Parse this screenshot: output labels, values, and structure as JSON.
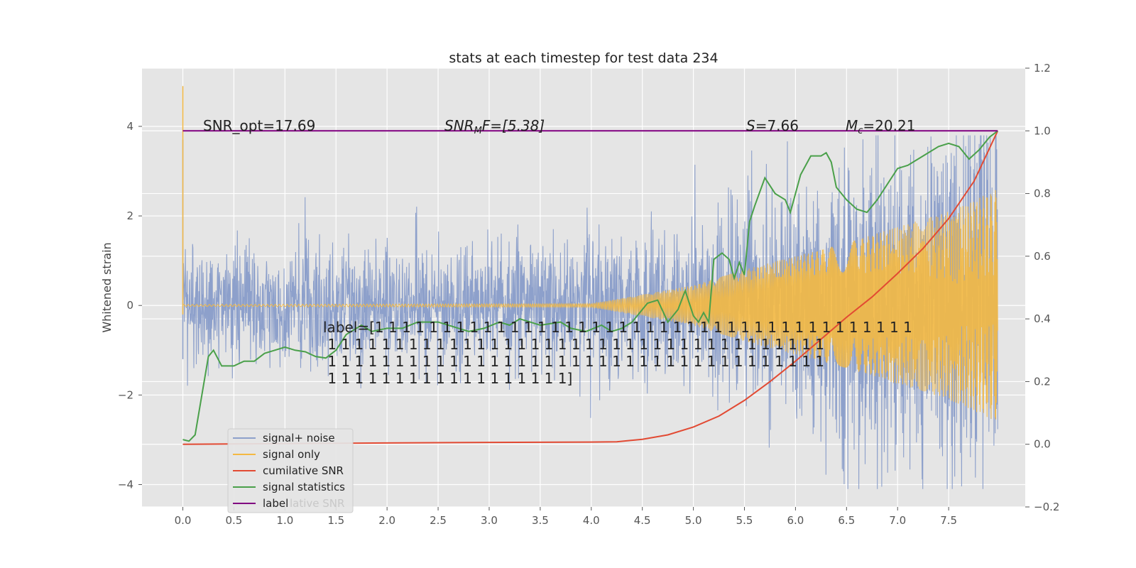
{
  "chart_data": {
    "type": "line",
    "title": "stats at each timestep for test data 234",
    "ylabel": "Whitened strain",
    "xlim": [
      -0.4,
      8.25
    ],
    "ylim": [
      -4.5,
      5.3
    ],
    "y2lim": [
      -0.2,
      1.2
    ],
    "x_ticks": [
      "0.0",
      "0.5",
      "1.0",
      "1.5",
      "2.0",
      "2.5",
      "3.0",
      "3.5",
      "4.0",
      "4.5",
      "5.0",
      "5.5",
      "6.0",
      "6.5",
      "7.0",
      "7.5"
    ],
    "y_ticks": [
      "−4",
      "−2",
      "0",
      "2",
      "4"
    ],
    "y2_ticks": [
      "−0.2",
      "0.0",
      "0.2",
      "0.4",
      "0.6",
      "0.8",
      "1.0",
      "1.2"
    ],
    "grid": true,
    "legend_position": "lower-left",
    "colors": {
      "signal_noise": "#8da0cb",
      "signal_only": "#f4b942",
      "cumulative_snr": "#e24a33",
      "signal_statistics": "#4aa04a",
      "label": "#800080",
      "panel_bg": "#e5e5e5",
      "grid": "#ffffff"
    },
    "annotations": {
      "snr_opt": "SNR_opt=17.69",
      "snr_mf": "SNR",
      "snr_mf_sub": "M",
      "snr_mf_rest": "F=[5.38]",
      "s_value_sym": "S",
      "s_value": "=7.66",
      "mc_value_sym": "M",
      "mc_value_sub": "c",
      "mc_value": "=20.21",
      "label_lines": [
        "label=[1 1 1 1 1 1 1 1 1 1 1 1 1 1 1 1 1 1 1 1 1 1 1 1 1 1 1 1 1 1 1 1 1 1 1 1 1 1 1 1",
        " 1 1 1 1 1 1 1 1 1 1 1 1 1 1 1 1 1 1 1 1 1 1 1 1 1 1 1 1 1 1 1 1 1 1 1 1 1",
        " 1 1 1 1 1 1 1 1 1 1 1 1 1 1 1 1 1 1 1 1 1 1 1 1 1 1 1 1 1 1 1 1 1 1 1 1 1",
        " 1 1 1 1 1 1 1 1 1 1 1 1 1 1 1 1 1 1]"
      ]
    },
    "series": [
      {
        "name": "signal+ noise",
        "axis": "left",
        "style": "noise",
        "envelope": {
          "x": [
            0.0,
            2.0,
            4.0,
            5.0,
            6.0,
            7.0,
            7.9
          ],
          "amp": [
            1.6,
            1.7,
            1.8,
            2.0,
            2.6,
            3.3,
            3.7
          ]
        }
      },
      {
        "name": "signal only",
        "axis": "left",
        "style": "chirp",
        "envelope": {
          "x": [
            0.0,
            4.0,
            5.0,
            5.5,
            6.0,
            6.5,
            7.0,
            7.5,
            7.98
          ],
          "amp": [
            0.02,
            0.04,
            0.45,
            0.8,
            1.1,
            1.4,
            1.75,
            2.1,
            2.6
          ]
        }
      },
      {
        "name": "cumilative SNR",
        "axis": "right",
        "x": [
          0.0,
          1.0,
          2.0,
          3.0,
          4.0,
          4.25,
          4.5,
          4.75,
          5.0,
          5.25,
          5.5,
          5.75,
          6.0,
          6.25,
          6.5,
          6.75,
          7.0,
          7.25,
          7.5,
          7.75,
          7.98
        ],
        "y": [
          0.0,
          0.002,
          0.004,
          0.006,
          0.007,
          0.008,
          0.016,
          0.03,
          0.055,
          0.09,
          0.14,
          0.2,
          0.265,
          0.335,
          0.405,
          0.47,
          0.545,
          0.625,
          0.72,
          0.84,
          1.0
        ]
      },
      {
        "name": "signal statistics",
        "axis": "right",
        "x": [
          0.0,
          0.06,
          0.12,
          0.25,
          0.3,
          0.38,
          0.5,
          0.6,
          0.7,
          0.8,
          0.9,
          1.0,
          1.1,
          1.2,
          1.3,
          1.4,
          1.5,
          1.6,
          1.75,
          1.85,
          2.0,
          2.15,
          2.3,
          2.5,
          2.7,
          2.8,
          2.95,
          3.1,
          3.2,
          3.3,
          3.5,
          3.7,
          3.8,
          3.95,
          4.1,
          4.2,
          4.3,
          4.4,
          4.55,
          4.65,
          4.75,
          4.85,
          4.92,
          5.0,
          5.05,
          5.1,
          5.15,
          5.2,
          5.28,
          5.35,
          5.4,
          5.45,
          5.5,
          5.55,
          5.6,
          5.7,
          5.8,
          5.9,
          5.95,
          6.05,
          6.15,
          6.25,
          6.3,
          6.35,
          6.4,
          6.5,
          6.6,
          6.7,
          6.8,
          7.0,
          7.1,
          7.25,
          7.4,
          7.5,
          7.6,
          7.7,
          7.8,
          7.9,
          7.98
        ],
        "y": [
          0.015,
          0.01,
          0.03,
          0.28,
          0.3,
          0.25,
          0.25,
          0.265,
          0.265,
          0.29,
          0.3,
          0.31,
          0.3,
          0.295,
          0.28,
          0.275,
          0.3,
          0.35,
          0.38,
          0.36,
          0.37,
          0.37,
          0.39,
          0.39,
          0.37,
          0.36,
          0.37,
          0.39,
          0.38,
          0.4,
          0.38,
          0.39,
          0.37,
          0.36,
          0.38,
          0.36,
          0.37,
          0.39,
          0.45,
          0.46,
          0.39,
          0.43,
          0.49,
          0.41,
          0.39,
          0.42,
          0.39,
          0.59,
          0.61,
          0.59,
          0.53,
          0.58,
          0.54,
          0.71,
          0.76,
          0.85,
          0.8,
          0.78,
          0.74,
          0.86,
          0.92,
          0.92,
          0.93,
          0.9,
          0.82,
          0.78,
          0.75,
          0.74,
          0.78,
          0.88,
          0.89,
          0.92,
          0.95,
          0.96,
          0.95,
          0.91,
          0.94,
          0.98,
          1.0
        ]
      },
      {
        "name": "label",
        "axis": "right",
        "x": [
          0.0,
          7.98
        ],
        "y": [
          1.0,
          1.0
        ]
      }
    ],
    "legend_overlap_text": "lative SNR"
  }
}
